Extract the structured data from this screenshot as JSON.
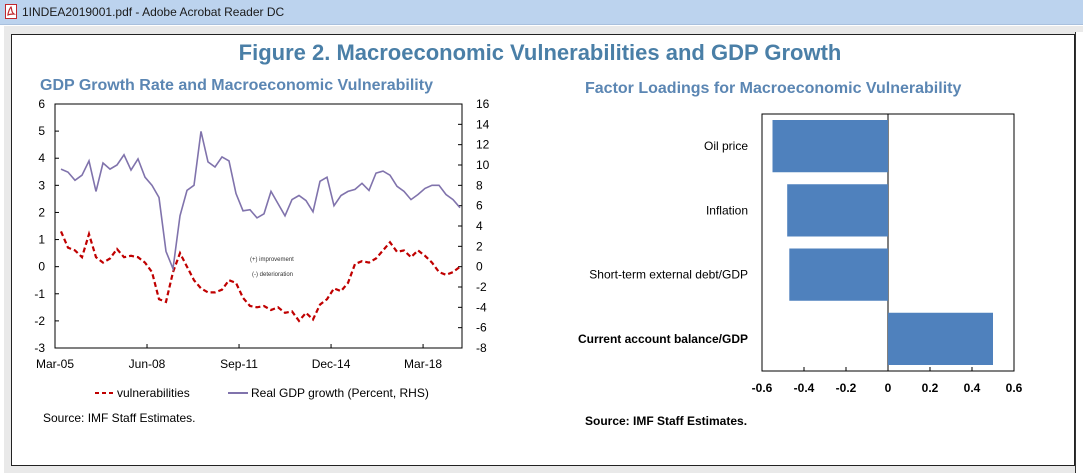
{
  "window": {
    "title": "1INDEA2019001.pdf - Adobe Acrobat Reader DC"
  },
  "figure": {
    "title": "Figure 2. Macroeconomic Vulnerabilities and GDP Growth",
    "left_title": "GDP Growth Rate and Macroeconomic Vulnerability",
    "right_title": "Factor Loadings for Macroeconomic Vulnerability",
    "left_source": "Source: IMF Staff Estimates.",
    "right_source": "Source: IMF Staff Estimates.",
    "annot_improvement": "(+) improvement",
    "annot_deterioration": "(-) deterioration"
  },
  "chart_data": [
    {
      "type": "line",
      "title": "GDP Growth Rate and Macroeconomic Vulnerability",
      "x_tick_labels": [
        "Mar-05",
        "Jun-08",
        "Sep-11",
        "Dec-14",
        "Mar-18"
      ],
      "x_range": [
        "Mar-05",
        "Jun-19"
      ],
      "y_left_range": [
        -3,
        6
      ],
      "y_left_ticks": [
        -3,
        -2,
        -1,
        0,
        1,
        2,
        3,
        4,
        5,
        6
      ],
      "y_right_range": [
        -8,
        16
      ],
      "y_right_ticks": [
        -8,
        -6,
        -4,
        -2,
        0,
        2,
        4,
        6,
        8,
        10,
        12,
        14,
        16
      ],
      "legend_placement": "bottom",
      "grid": false,
      "series": [
        {
          "name": "vulnerabilities",
          "axis": "left",
          "color": "#c00000",
          "style": "dashed",
          "values": [
            1.3,
            0.7,
            0.6,
            0.35,
            1.2,
            0.35,
            0.15,
            0.3,
            0.65,
            0.35,
            0.4,
            0.35,
            0.15,
            -0.2,
            -1.2,
            -1.3,
            -0.2,
            0.5,
            0.0,
            -0.5,
            -0.8,
            -0.95,
            -0.95,
            -0.85,
            -0.5,
            -0.6,
            -1.15,
            -1.45,
            -1.5,
            -1.45,
            -1.6,
            -1.5,
            -1.7,
            -1.65,
            -2.0,
            -1.7,
            -1.95,
            -1.4,
            -1.2,
            -0.8,
            -0.9,
            -0.6,
            0.1,
            0.2,
            0.15,
            0.3,
            0.6,
            0.9,
            0.55,
            0.6,
            0.35,
            0.6,
            0.4,
            0.15,
            -0.2,
            -0.3,
            -0.2,
            0.0
          ]
        },
        {
          "name": "Real GDP growth (Percent, RHS)",
          "axis": "right",
          "color": "#8073ac",
          "style": "solid",
          "values": [
            9.6,
            9.3,
            8.5,
            9.0,
            10.4,
            7.4,
            10.2,
            9.6,
            10.0,
            11.0,
            9.5,
            10.6,
            8.8,
            8.0,
            6.8,
            1.5,
            -0.2,
            5.0,
            7.5,
            8.0,
            13.3,
            10.3,
            9.8,
            10.8,
            10.4,
            7.2,
            5.5,
            5.6,
            4.8,
            5.2,
            7.4,
            6.2,
            5.0,
            6.6,
            7.0,
            6.5,
            5.4,
            8.4,
            8.8,
            6.0,
            7.0,
            7.4,
            7.6,
            8.2,
            7.5,
            9.2,
            9.4,
            9.0,
            7.9,
            7.4,
            6.6,
            7.1,
            7.7,
            8.0,
            8.0,
            7.1,
            6.6,
            5.8
          ]
        }
      ]
    },
    {
      "type": "bar",
      "orientation": "horizontal",
      "title": "Factor Loadings for Macroeconomic Vulnerability",
      "categories": [
        "Oil price",
        "Inflation",
        "Short-term external debt/GDP",
        "Current account balance/GDP"
      ],
      "values": [
        -0.55,
        -0.48,
        -0.47,
        0.5
      ],
      "xlim": [
        -0.6,
        0.6
      ],
      "x_ticks": [
        -0.6,
        -0.4,
        -0.2,
        0,
        0.2,
        0.4,
        0.6
      ],
      "bar_color": "#4f81bd",
      "grid": false
    }
  ]
}
